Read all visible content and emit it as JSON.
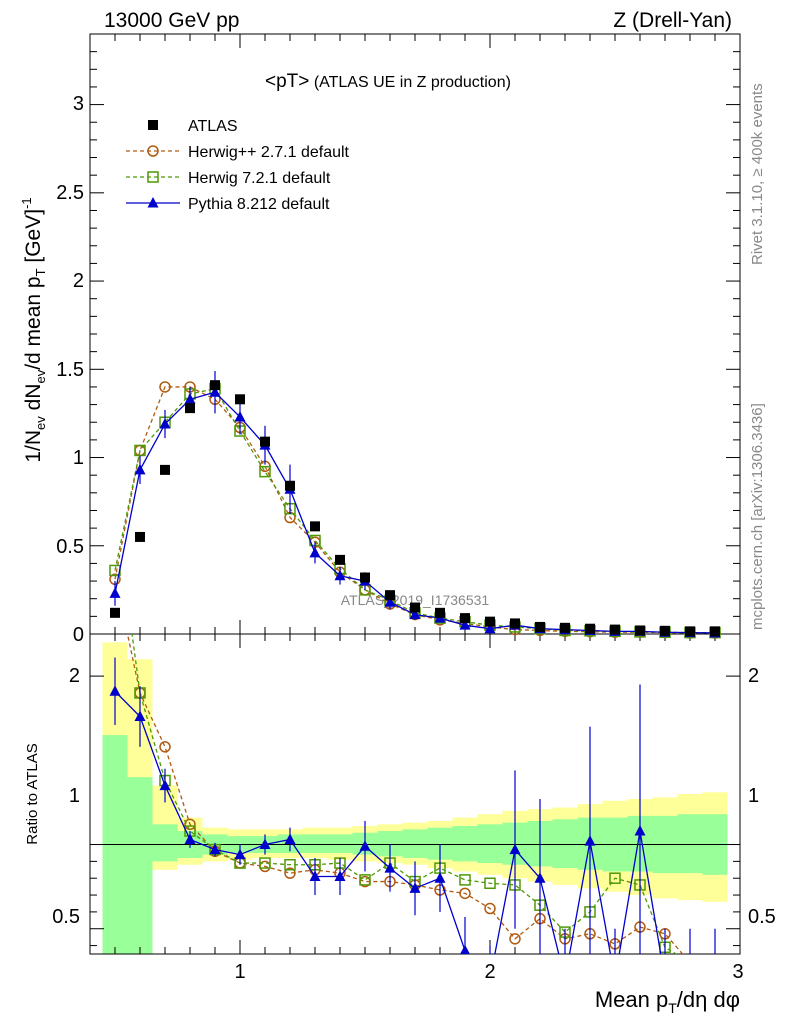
{
  "header": {
    "left": "13000 GeV pp",
    "right": "Z (Drell-Yan)"
  },
  "side_text": {
    "rivet": "Rivet 3.1.10, ≥ 400k events",
    "mcplots": "mcplots.cern.ch [arXiv:1306.3436]"
  },
  "watermark": "ATLAS_2019_I1736531",
  "chart_data": {
    "type": "scatter",
    "title": "<pT> (ATLAS UE in Z production)",
    "title_main": "<pT>",
    "title_sub": " (ATLAS UE in Z production)",
    "xlabel": "Mean p_T/dη dφ",
    "xlabel_main": "Mean p",
    "xlabel_sub": "T",
    "xlabel_rest": "/dη dφ",
    "ylabel": "1/N_ev dN_ev/d mean p_T [GeV]^-1",
    "ylabel_parts": [
      "1/N",
      "ev",
      " dN",
      "ev",
      "/d mean p",
      "T",
      " [GeV]",
      "-1"
    ],
    "ratio_ylabel": "Ratio to ATLAS",
    "xlim": [
      0.4,
      3.0
    ],
    "ylim": [
      0,
      3.4
    ],
    "ratio_ylim": [
      0.35,
      2.25
    ],
    "x_ticks": [
      1,
      2,
      3
    ],
    "x_tick_labels": [
      "1",
      "2",
      "3"
    ],
    "y_ticks": [
      0,
      0.5,
      1,
      1.5,
      2,
      2.5,
      3
    ],
    "y_tick_labels": [
      "0",
      "0.5",
      "1",
      "1.5",
      "2",
      "2.5",
      "3"
    ],
    "ratio_ticks": [
      0.5,
      1,
      2
    ],
    "ratio_tick_labels": [
      "0.5",
      "1",
      "2"
    ],
    "legend_position": "top-left",
    "x": [
      0.5,
      0.6,
      0.7,
      0.8,
      0.9,
      1.0,
      1.1,
      1.2,
      1.3,
      1.4,
      1.5,
      1.6,
      1.7,
      1.8,
      1.9,
      2.0,
      2.1,
      2.2,
      2.3,
      2.4,
      2.5,
      2.6,
      2.7,
      2.8,
      2.9
    ],
    "series": [
      {
        "name": "ATLAS",
        "color": "#000000",
        "marker": "square-filled",
        "values": [
          0.12,
          0.55,
          0.93,
          1.28,
          1.41,
          1.33,
          1.09,
          0.84,
          0.61,
          0.42,
          0.32,
          0.22,
          0.15,
          0.12,
          0.09,
          0.07,
          0.06,
          0.04,
          0.035,
          0.03,
          0.025,
          0.02,
          0.018,
          0.015,
          0.015
        ]
      },
      {
        "name": "Herwig++ 2.7.1 default",
        "color": "#b05a10",
        "marker": "circle-open",
        "dash": "4,3",
        "values": [
          0.31,
          1.04,
          1.4,
          1.4,
          1.33,
          1.17,
          0.95,
          0.66,
          0.52,
          0.35,
          0.25,
          0.17,
          0.11,
          0.08,
          0.06,
          0.04,
          0.025,
          0.02,
          0.015,
          0.013,
          0.01,
          0.01,
          0.008,
          0.006,
          0.005
        ],
        "ratio": [
          2.6,
          1.9,
          1.58,
          1.12,
          0.96,
          0.89,
          0.87,
          0.83,
          0.85,
          0.83,
          0.78,
          0.78,
          0.76,
          0.73,
          0.71,
          0.62,
          0.44,
          0.56,
          0.44,
          0.47,
          0.41,
          0.51,
          0.47,
          0.3,
          0.3
        ]
      },
      {
        "name": "Herwig 7.2.1 default",
        "color": "#4e9a06",
        "marker": "square-open",
        "dash": "4,3",
        "values": [
          0.36,
          1.04,
          1.2,
          1.36,
          1.39,
          1.15,
          0.92,
          0.71,
          0.53,
          0.37,
          0.25,
          0.19,
          0.12,
          0.09,
          0.07,
          0.05,
          0.04,
          0.03,
          0.02,
          0.018,
          0.015,
          0.012,
          0.01,
          0.008,
          0.008
        ],
        "ratio": [
          3.0,
          1.9,
          1.38,
          1.08,
          0.97,
          0.89,
          0.89,
          0.88,
          0.88,
          0.89,
          0.79,
          0.89,
          0.78,
          0.86,
          0.79,
          0.77,
          0.76,
          0.64,
          0.48,
          0.6,
          0.8,
          0.76,
          0.39,
          0.3,
          0.3
        ]
      },
      {
        "name": "Pythia 8.212 default",
        "color": "#0000cc",
        "marker": "triangle-filled",
        "values": [
          0.23,
          0.93,
          1.19,
          1.33,
          1.37,
          1.23,
          1.07,
          0.82,
          0.46,
          0.33,
          0.3,
          0.18,
          0.11,
          0.09,
          0.05,
          0.03,
          0.05,
          0.03,
          0.025,
          0.02,
          0.015,
          0.015,
          0.01,
          0.008,
          0.006
        ],
        "errors": [
          0.07,
          0.08,
          0.08,
          0.07,
          0.12,
          0.1,
          0.11,
          0.14,
          0.06,
          0.05,
          0.05,
          0.04,
          0.03,
          0.02,
          0.02,
          0.02,
          0.02,
          0.01,
          0.01,
          0.01,
          0.01,
          0.01,
          0.01,
          0.01,
          0.01
        ],
        "ratio": [
          1.91,
          1.76,
          1.35,
          1.03,
          0.97,
          0.94,
          1.0,
          1.03,
          0.81,
          0.81,
          0.99,
          0.86,
          0.74,
          0.8,
          0.37,
          0.2,
          0.97,
          0.8,
          0.2,
          1.02,
          0.2,
          1.08,
          0.2,
          0.2,
          0.2
        ],
        "ratio_errors": [
          0.2,
          0.18,
          0.1,
          0.05,
          0.04,
          0.06,
          0.06,
          0.07,
          0.11,
          0.11,
          0.15,
          0.14,
          0.16,
          0.2,
          0.2,
          0.2,
          0.47,
          0.47,
          0.3,
          0.68,
          0.3,
          0.87,
          0.3,
          0.3,
          0.3
        ]
      }
    ],
    "ratio_bands": {
      "yellow": [
        [
          0.8,
          2.2
        ],
        [
          0.78,
          2.1
        ],
        [
          0.85,
          1.35
        ],
        [
          0.88,
          1.16
        ],
        [
          0.9,
          1.1
        ],
        [
          0.91,
          1.09
        ],
        [
          0.92,
          1.09
        ],
        [
          0.92,
          1.09
        ],
        [
          0.92,
          1.1
        ],
        [
          0.91,
          1.1
        ],
        [
          0.9,
          1.11
        ],
        [
          0.89,
          1.12
        ],
        [
          0.88,
          1.13
        ],
        [
          0.86,
          1.14
        ],
        [
          0.84,
          1.16
        ],
        [
          0.82,
          1.18
        ],
        [
          0.8,
          1.2
        ],
        [
          0.78,
          1.21
        ],
        [
          0.76,
          1.22
        ],
        [
          0.74,
          1.24
        ],
        [
          0.72,
          1.26
        ],
        [
          0.7,
          1.27
        ],
        [
          0.68,
          1.28
        ],
        [
          0.67,
          1.3
        ],
        [
          0.66,
          1.31
        ]
      ],
      "green": [
        [
          0.35,
          1.65
        ],
        [
          0.35,
          1.4
        ],
        [
          0.9,
          1.12
        ],
        [
          0.92,
          1.08
        ],
        [
          0.94,
          1.06
        ],
        [
          0.95,
          1.05
        ],
        [
          0.95,
          1.05
        ],
        [
          0.95,
          1.06
        ],
        [
          0.95,
          1.06
        ],
        [
          0.95,
          1.06
        ],
        [
          0.94,
          1.07
        ],
        [
          0.93,
          1.08
        ],
        [
          0.92,
          1.09
        ],
        [
          0.91,
          1.1
        ],
        [
          0.9,
          1.11
        ],
        [
          0.89,
          1.12
        ],
        [
          0.88,
          1.13
        ],
        [
          0.87,
          1.14
        ],
        [
          0.86,
          1.15
        ],
        [
          0.85,
          1.16
        ],
        [
          0.84,
          1.16
        ],
        [
          0.84,
          1.17
        ],
        [
          0.83,
          1.17
        ],
        [
          0.83,
          1.18
        ],
        [
          0.82,
          1.18
        ]
      ]
    }
  }
}
